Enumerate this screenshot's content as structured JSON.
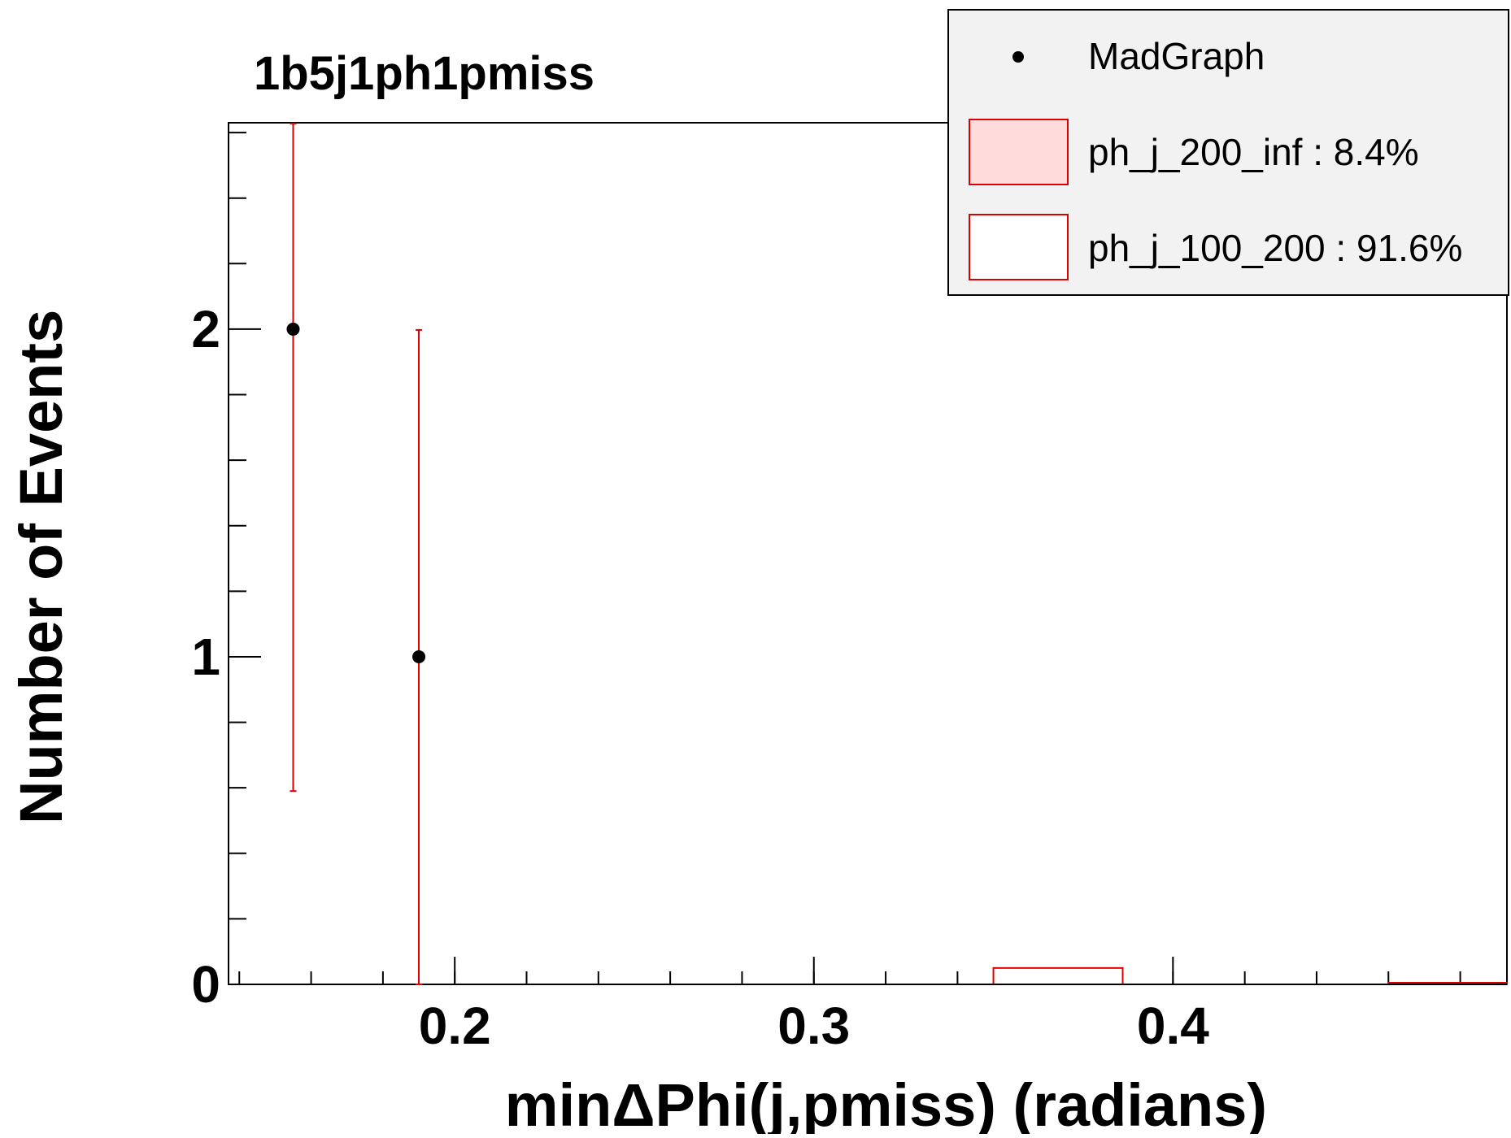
{
  "chart_data": {
    "type": "histogram",
    "title": "1b5j1ph1pmiss",
    "xlabel": "minΔPhi(j,pmiss) (radians)",
    "ylabel": "Number of Events",
    "xlim": [
      0.137,
      0.493
    ],
    "ylim": [
      0,
      2.63
    ],
    "x_ticks": [
      0.2,
      0.3,
      0.4
    ],
    "x_tick_labels": [
      "0.2",
      "0.3",
      "0.4"
    ],
    "y_ticks": [
      0,
      1,
      2
    ],
    "y_tick_labels": [
      "0",
      "1",
      "2"
    ],
    "legend_position": "top-right",
    "series": [
      {
        "name": "MadGraph",
        "kind": "points-with-errors",
        "color": "#000000",
        "error_color": "#dd0000",
        "x": [
          0.155,
          0.19
        ],
        "y": [
          2,
          1
        ],
        "err_low": [
          1.41,
          1.0
        ],
        "err_high": [
          2.63,
          1.0
        ]
      },
      {
        "name": "ph_j_200_inf : 8.4%",
        "kind": "histogram",
        "fill": "#ffdcdc",
        "stroke": "#dd0000",
        "bins": []
      },
      {
        "name": "ph_j_100_200 : 91.6%",
        "kind": "histogram",
        "fill": "#ffffff",
        "stroke": "#dd0000",
        "bins": [
          {
            "x0": 0.35,
            "x1": 0.386,
            "y": 0.05
          },
          {
            "x0": 0.46,
            "x1": 0.493,
            "y": 0.005
          }
        ]
      }
    ]
  }
}
